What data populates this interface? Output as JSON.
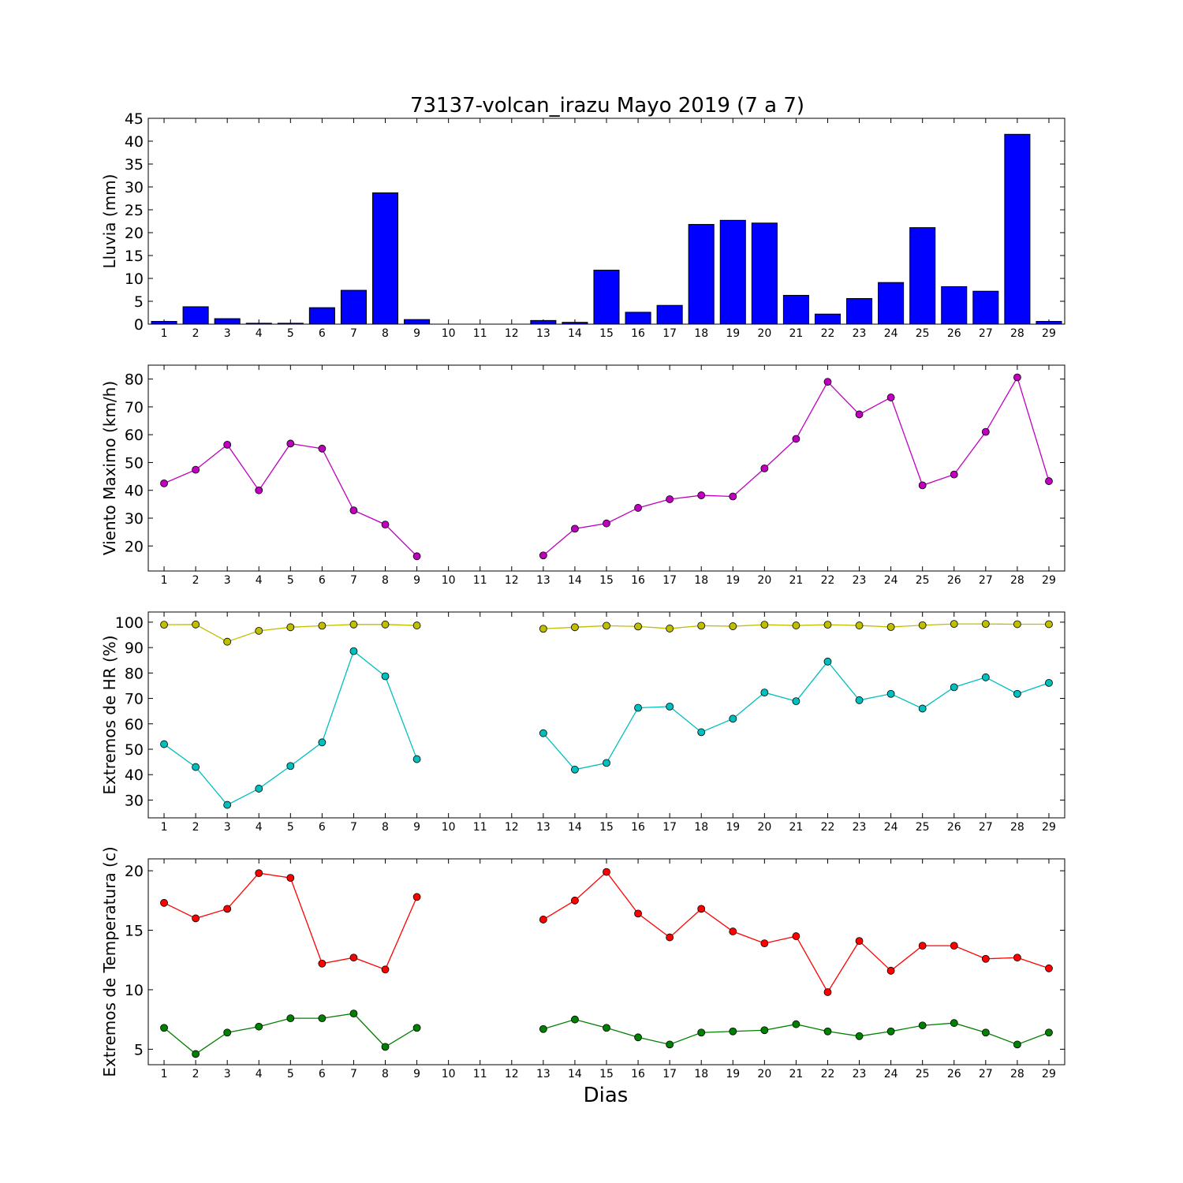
{
  "title": "73137-volcan_irazu Mayo 2019  (7 a 7)",
  "xlabel": "Dias",
  "chart_data": [
    {
      "type": "bar",
      "ylabel": "Lluvia (mm)",
      "ylim": [
        0,
        45
      ],
      "yticks": [
        0,
        5,
        10,
        15,
        20,
        25,
        30,
        35,
        40,
        45
      ],
      "color": "#0000ff",
      "categories": [
        1,
        2,
        3,
        4,
        5,
        6,
        7,
        8,
        9,
        10,
        11,
        12,
        13,
        14,
        15,
        16,
        17,
        18,
        19,
        20,
        21,
        22,
        23,
        24,
        25,
        26,
        27,
        28,
        29
      ],
      "values": [
        0.6,
        3.8,
        1.2,
        0.2,
        0.2,
        3.6,
        7.4,
        28.7,
        1.0,
        null,
        null,
        null,
        0.8,
        0.4,
        11.8,
        2.6,
        4.1,
        21.8,
        22.7,
        22.1,
        6.3,
        2.2,
        5.6,
        9.1,
        21.1,
        8.2,
        7.2,
        41.5,
        0.6
      ]
    },
    {
      "type": "line",
      "ylabel": "Viento Maximo (km/h)",
      "ylim": [
        11,
        85
      ],
      "yticks": [
        20,
        30,
        40,
        50,
        60,
        70,
        80
      ],
      "x": [
        1,
        2,
        3,
        4,
        5,
        6,
        7,
        8,
        9,
        10,
        11,
        12,
        13,
        14,
        15,
        16,
        17,
        18,
        19,
        20,
        21,
        22,
        23,
        24,
        25,
        26,
        27,
        28,
        29
      ],
      "series": [
        {
          "color": "#bf00bf",
          "values": [
            42.5,
            47.4,
            56.4,
            40.0,
            56.8,
            55.0,
            32.8,
            27.7,
            16.3,
            null,
            null,
            null,
            16.6,
            26.2,
            28.1,
            33.7,
            36.8,
            38.2,
            37.8,
            47.9,
            58.5,
            79.0,
            67.3,
            73.4,
            41.8,
            45.7,
            61.0,
            80.6,
            43.3
          ]
        }
      ]
    },
    {
      "type": "line",
      "ylabel": "Extremos de HR (%)",
      "ylim": [
        23,
        104
      ],
      "yticks": [
        30,
        40,
        50,
        60,
        70,
        80,
        90,
        100
      ],
      "x": [
        1,
        2,
        3,
        4,
        5,
        6,
        7,
        8,
        9,
        10,
        11,
        12,
        13,
        14,
        15,
        16,
        17,
        18,
        19,
        20,
        21,
        22,
        23,
        24,
        25,
        26,
        27,
        28,
        29
      ],
      "series": [
        {
          "color": "#bfbf00",
          "values": [
            99.0,
            99.1,
            92.3,
            96.6,
            98.0,
            98.6,
            99.1,
            99.1,
            98.7,
            null,
            null,
            null,
            97.4,
            98.0,
            98.6,
            98.3,
            97.5,
            98.6,
            98.4,
            99.0,
            98.7,
            99.0,
            98.7,
            98.1,
            98.8,
            99.3,
            99.3,
            99.2,
            99.2
          ]
        },
        {
          "color": "#00bfbf",
          "values": [
            52.0,
            43.0,
            28.1,
            34.5,
            43.4,
            52.7,
            88.6,
            78.7,
            46.1,
            null,
            null,
            null,
            56.3,
            42.0,
            44.6,
            66.3,
            66.8,
            56.7,
            62.0,
            72.3,
            68.9,
            84.5,
            69.3,
            71.8,
            66.0,
            74.4,
            78.3,
            71.8,
            76.1
          ]
        }
      ]
    },
    {
      "type": "line",
      "ylabel": "Extremos de Temperatura (c)",
      "ylim": [
        3.7,
        21.0
      ],
      "yticks": [
        5,
        10,
        15,
        20
      ],
      "x": [
        1,
        2,
        3,
        4,
        5,
        6,
        7,
        8,
        9,
        10,
        11,
        12,
        13,
        14,
        15,
        16,
        17,
        18,
        19,
        20,
        21,
        22,
        23,
        24,
        25,
        26,
        27,
        28,
        29
      ],
      "series": [
        {
          "color": "#ff0000",
          "values": [
            17.3,
            16.0,
            16.8,
            19.8,
            19.4,
            12.2,
            12.7,
            11.7,
            17.8,
            null,
            null,
            null,
            15.9,
            17.5,
            19.9,
            16.4,
            14.4,
            16.8,
            14.9,
            13.9,
            14.5,
            9.8,
            14.1,
            11.6,
            13.7,
            13.7,
            12.6,
            12.7,
            11.8
          ]
        },
        {
          "color": "#008000",
          "values": [
            6.8,
            4.6,
            6.4,
            6.9,
            7.6,
            7.6,
            8.0,
            5.2,
            6.8,
            null,
            null,
            null,
            6.7,
            7.5,
            6.8,
            6.0,
            5.4,
            6.4,
            6.5,
            6.6,
            7.1,
            6.5,
            6.1,
            6.5,
            7.0,
            7.2,
            6.4,
            5.4,
            6.4
          ]
        }
      ]
    }
  ]
}
